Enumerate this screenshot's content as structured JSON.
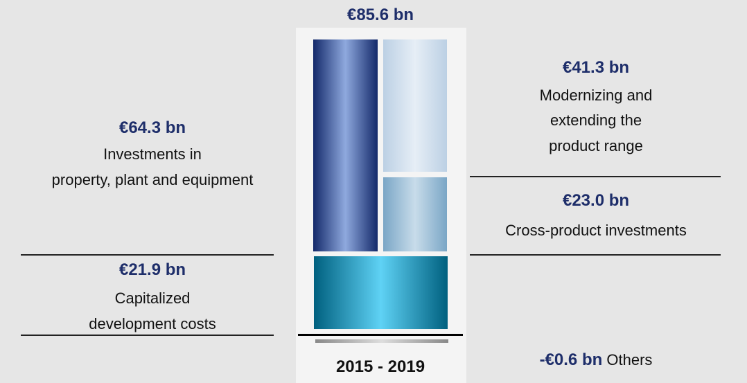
{
  "total": {
    "amount": "€85.6 bn"
  },
  "segments": [
    {
      "amount": "€41.3 bn",
      "lines": [
        "Modernizing and",
        "extending the",
        "product range"
      ]
    },
    {
      "amount": "€64.3 bn",
      "lines": [
        "Investments in",
        "property, plant and equipment"
      ]
    },
    {
      "amount": "€23.0 bn",
      "lines": [
        "Cross-product investments"
      ]
    },
    {
      "amount": "€21.9 bn",
      "lines": [
        "Capitalized",
        "development costs"
      ]
    },
    {
      "amount": "-€0.6 bn",
      "lines": [
        "Others"
      ]
    }
  ],
  "period": "2015 - 2019"
}
